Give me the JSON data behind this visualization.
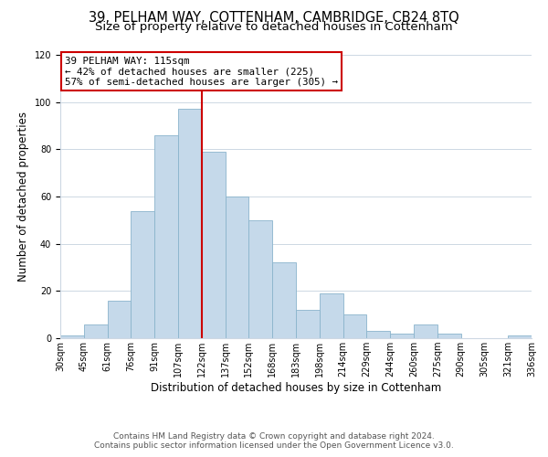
{
  "title1": "39, PELHAM WAY, COTTENHAM, CAMBRIDGE, CB24 8TQ",
  "title2": "Size of property relative to detached houses in Cottenham",
  "xlabel": "Distribution of detached houses by size in Cottenham",
  "ylabel": "Number of detached properties",
  "bar_values": [
    1,
    6,
    16,
    54,
    86,
    97,
    79,
    60,
    50,
    32,
    12,
    19,
    10,
    3,
    2,
    6,
    2,
    0,
    0,
    1
  ],
  "bin_labels": [
    "30sqm",
    "45sqm",
    "61sqm",
    "76sqm",
    "91sqm",
    "107sqm",
    "122sqm",
    "137sqm",
    "152sqm",
    "168sqm",
    "183sqm",
    "198sqm",
    "214sqm",
    "229sqm",
    "244sqm",
    "260sqm",
    "275sqm",
    "290sqm",
    "305sqm",
    "321sqm",
    "336sqm"
  ],
  "bar_color": "#c5d9ea",
  "bar_edge_color": "#8ab4cc",
  "vline_color": "#cc0000",
  "annotation_text": "39 PELHAM WAY: 115sqm\n← 42% of detached houses are smaller (225)\n57% of semi-detached houses are larger (305) →",
  "annotation_box_color": "#ffffff",
  "annotation_box_edge": "#cc0000",
  "ylim": [
    0,
    120
  ],
  "yticks": [
    0,
    20,
    40,
    60,
    80,
    100,
    120
  ],
  "footer1": "Contains HM Land Registry data © Crown copyright and database right 2024.",
  "footer2": "Contains public sector information licensed under the Open Government Licence v3.0.",
  "bg_color": "#ffffff",
  "grid_color": "#cdd8e3",
  "title1_fontsize": 10.5,
  "title2_fontsize": 9.5,
  "xlabel_fontsize": 8.5,
  "ylabel_fontsize": 8.5,
  "tick_fontsize": 7.0,
  "footer_fontsize": 6.5
}
